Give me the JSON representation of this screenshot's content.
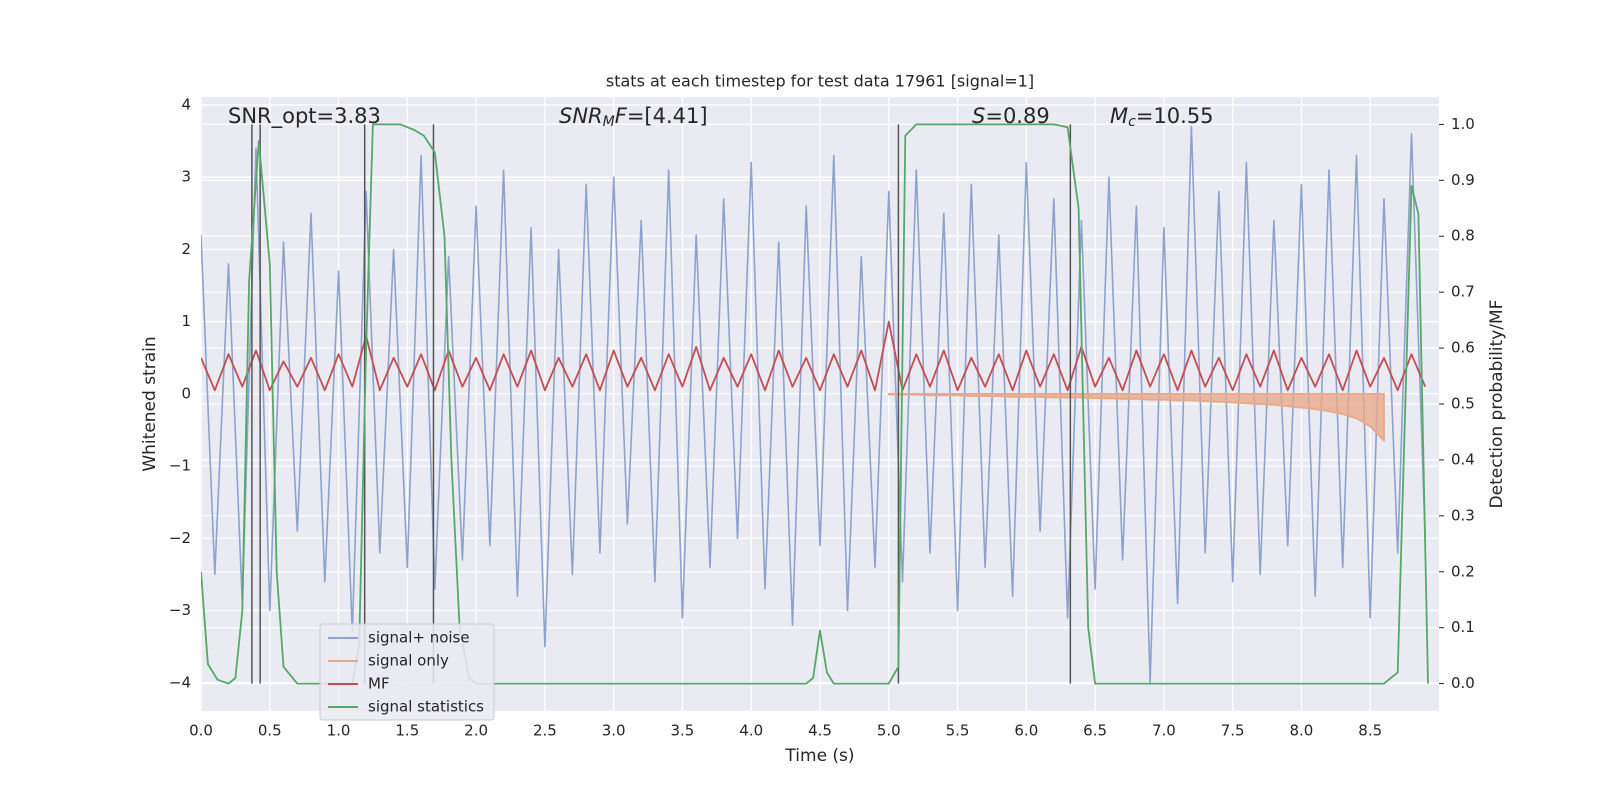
{
  "chart_data": {
    "type": "line",
    "title": "stats at each timestep for test data 17961 [signal=1]",
    "xlabel": "Time (s)",
    "ylabel": "Whitened strain",
    "y2label": "Detection probability/MF",
    "background": "#eaeaf2",
    "grid": true,
    "annotations": [
      [
        "SNR_opt=3.83"
      ],
      [
        "SNR",
        "M",
        "F",
        "=[4.41]"
      ],
      [
        "S",
        "=0.89"
      ],
      [
        "M",
        "c",
        "=10.55"
      ]
    ],
    "xlim": [
      0,
      9.0
    ],
    "xticks": [
      {
        "value": 0,
        "label": "0.0"
      },
      0.5,
      {
        "value": 1,
        "label": "1.0"
      },
      1.5,
      {
        "value": 2,
        "label": "2.0"
      },
      2.5,
      {
        "value": 3,
        "label": "3.0"
      },
      3.5,
      {
        "value": 4,
        "label": "4.0"
      },
      4.5,
      {
        "value": 5,
        "label": "5.0"
      },
      5.5,
      {
        "value": 6,
        "label": "6.0"
      },
      6.5,
      {
        "value": 7,
        "label": "7.0"
      },
      7.5,
      {
        "value": 8,
        "label": "8.0"
      },
      8.5
    ],
    "ylim": [
      -4.39,
      4.11
    ],
    "yticks": [
      {
        "value": -4,
        "label": "−4"
      },
      {
        "value": -3,
        "label": "−3"
      },
      {
        "value": -2,
        "label": "−2"
      },
      {
        "value": -1,
        "label": "−1"
      },
      0,
      1,
      2,
      3,
      4
    ],
    "y2lim": [
      -0.049,
      1.049
    ],
    "y2ticks": [
      {
        "value": 0,
        "label": "0.0"
      },
      0.1,
      0.2,
      0.3,
      0.4,
      0.5,
      0.6,
      0.7,
      0.8,
      0.9,
      {
        "value": 1,
        "label": "1.0"
      }
    ],
    "vlines": [
      0.37,
      0.43,
      1.19,
      1.69,
      5.07,
      6.32
    ],
    "vline_color": "#555555",
    "x": [
      0.0,
      0.1,
      0.2,
      0.3,
      0.4,
      0.5,
      0.6,
      0.7,
      0.8,
      0.9,
      1.0,
      1.1,
      1.2,
      1.3,
      1.4,
      1.5,
      1.6,
      1.7,
      1.8,
      1.9,
      2.0,
      2.1,
      2.2,
      2.3,
      2.4,
      2.5,
      2.6,
      2.7,
      2.8,
      2.9,
      3.0,
      3.1,
      3.2,
      3.3,
      3.4,
      3.5,
      3.6,
      3.7,
      3.8,
      3.9,
      4.0,
      4.1,
      4.2,
      4.3,
      4.4,
      4.5,
      4.6,
      4.7,
      4.8,
      4.9,
      5.0,
      5.1,
      5.2,
      5.3,
      5.4,
      5.5,
      5.6,
      5.7,
      5.8,
      5.9,
      6.0,
      6.1,
      6.2,
      6.3,
      6.4,
      6.5,
      6.6,
      6.7,
      6.8,
      6.9,
      7.0,
      7.1,
      7.2,
      7.3,
      7.4,
      7.5,
      7.6,
      7.7,
      7.8,
      7.9,
      8.0,
      8.1,
      8.2,
      8.3,
      8.4,
      8.5,
      8.6,
      8.7,
      8.8,
      8.9
    ],
    "series": [
      {
        "name": "signal+ noise",
        "color": "#8ea2cb",
        "values": [
          2.2,
          -2.5,
          1.8,
          -2.9,
          3.4,
          -3.0,
          2.1,
          -1.9,
          2.5,
          -2.6,
          1.7,
          -3.3,
          2.8,
          -2.2,
          2.0,
          -2.4,
          3.3,
          -2.7,
          1.9,
          -2.3,
          2.6,
          -2.1,
          3.1,
          -2.8,
          2.3,
          -3.5,
          2.0,
          -2.5,
          2.9,
          -2.2,
          3.0,
          -1.8,
          2.4,
          -2.6,
          3.1,
          -3.1,
          2.2,
          -2.4,
          2.7,
          -2.0,
          3.2,
          -2.7,
          2.1,
          -3.2,
          2.6,
          -2.1,
          3.3,
          -3.0,
          1.9,
          -2.4,
          2.8,
          -2.6,
          3.1,
          -2.2,
          2.5,
          -3.0,
          2.9,
          -2.4,
          2.2,
          -2.8,
          3.2,
          -1.9,
          2.7,
          -3.1,
          2.4,
          -2.7,
          3.0,
          -2.3,
          2.6,
          -4.0,
          2.3,
          -2.9,
          3.7,
          -2.2,
          2.8,
          -2.6,
          3.2,
          -2.5,
          2.4,
          -2.1,
          2.9,
          -2.8,
          3.1,
          -2.4,
          3.3,
          -3.1,
          2.7,
          -2.2,
          3.6,
          -2.0
        ]
      },
      {
        "name": "signal only",
        "color": "#e8a98a",
        "values": [
          null,
          null,
          null,
          null,
          null,
          null,
          null,
          null,
          null,
          null,
          null,
          null,
          null,
          null,
          null,
          null,
          null,
          null,
          null,
          null,
          null,
          null,
          null,
          null,
          null,
          null,
          null,
          null,
          null,
          null,
          null,
          null,
          null,
          null,
          null,
          null,
          null,
          null,
          null,
          null,
          null,
          null,
          null,
          null,
          null,
          null,
          null,
          null,
          null,
          null,
          -0.01,
          -0.01,
          -0.01,
          -0.02,
          -0.02,
          -0.02,
          -0.03,
          -0.03,
          -0.03,
          -0.04,
          -0.04,
          -0.04,
          -0.05,
          -0.05,
          -0.05,
          -0.06,
          -0.06,
          -0.07,
          -0.07,
          -0.08,
          -0.08,
          -0.09,
          -0.09,
          -0.1,
          -0.11,
          -0.12,
          -0.13,
          -0.14,
          -0.15,
          -0.17,
          -0.19,
          -0.21,
          -0.24,
          -0.28,
          -0.34,
          -0.45,
          -0.65,
          null,
          null,
          null
        ]
      },
      {
        "name": "MF",
        "color": "#c44e52",
        "values": [
          0.5,
          0.05,
          0.55,
          0.1,
          0.6,
          0.05,
          0.45,
          0.1,
          0.5,
          0.05,
          0.55,
          0.1,
          0.8,
          0.05,
          0.5,
          0.1,
          0.55,
          0.05,
          0.6,
          0.1,
          0.5,
          0.05,
          0.55,
          0.1,
          0.6,
          0.05,
          0.5,
          0.1,
          0.55,
          0.05,
          0.6,
          0.1,
          0.5,
          0.05,
          0.55,
          0.1,
          0.65,
          0.05,
          0.5,
          0.1,
          0.55,
          0.05,
          0.6,
          0.1,
          0.5,
          0.05,
          0.55,
          0.1,
          0.6,
          0.05,
          1.0,
          0.05,
          0.55,
          0.1,
          0.6,
          0.05,
          0.5,
          0.1,
          0.55,
          0.05,
          0.6,
          0.1,
          0.55,
          0.05,
          0.65,
          0.1,
          0.5,
          0.05,
          0.6,
          0.1,
          0.55,
          0.05,
          0.6,
          0.1,
          0.5,
          0.05,
          0.55,
          0.1,
          0.6,
          0.05,
          0.5,
          0.1,
          0.55,
          0.05,
          0.6,
          0.1,
          0.5,
          0.05,
          0.55,
          0.1
        ]
      },
      {
        "name": "signal statistics",
        "color": "#55a868",
        "axis": "y2",
        "x": [
          0.0,
          0.05,
          0.12,
          0.2,
          0.25,
          0.3,
          0.35,
          0.42,
          0.5,
          0.55,
          0.6,
          0.7,
          1.0,
          1.1,
          1.15,
          1.2,
          1.25,
          1.3,
          1.45,
          1.55,
          1.62,
          1.7,
          1.77,
          1.82,
          1.88,
          1.95,
          2.0,
          4.4,
          4.45,
          4.5,
          4.55,
          4.6,
          5.0,
          5.07,
          5.12,
          5.2,
          6.2,
          6.3,
          6.38,
          6.45,
          6.5,
          8.6,
          8.7,
          8.8,
          8.85,
          8.92
        ],
        "values": [
          0.2,
          0.035,
          0.007,
          0.0,
          0.01,
          0.13,
          0.72,
          0.97,
          0.75,
          0.2,
          0.03,
          0.0,
          0.0,
          0.0,
          0.07,
          0.6,
          1.0,
          1.0,
          1.0,
          0.99,
          0.98,
          0.95,
          0.8,
          0.4,
          0.1,
          0.01,
          0.0,
          0.0,
          0.01,
          0.095,
          0.02,
          0.0,
          0.0,
          0.03,
          0.98,
          1.0,
          1.0,
          0.995,
          0.85,
          0.1,
          0.0,
          0.0,
          0.02,
          0.89,
          0.84,
          0.0
        ]
      }
    ]
  }
}
